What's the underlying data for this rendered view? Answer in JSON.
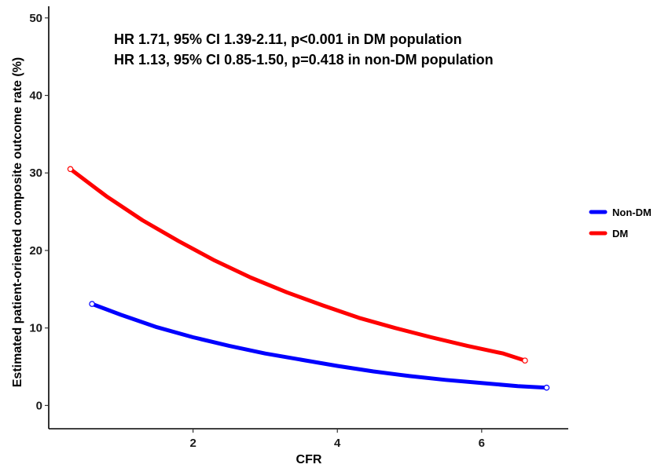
{
  "chart_data": {
    "type": "line",
    "xlabel": "CFR",
    "ylabel": "Estimated patient-oriented composite outcome rate (%)",
    "xlim": [
      0.0,
      7.2
    ],
    "ylim": [
      -3.0,
      51.5
    ],
    "x_ticks": [
      2,
      4,
      6
    ],
    "y_ticks": [
      0,
      10,
      20,
      30,
      40,
      50
    ],
    "annotations": [
      "HR 1.71, 95% CI 1.39-2.11, p<0.001 in DM population",
      "HR 1.13, 95% CI 0.85-1.50, p=0.418 in non-DM population"
    ],
    "legend_position": "right",
    "grid": false,
    "series": [
      {
        "name": "Non-DM",
        "color": "#0000ff",
        "x": [
          0.6,
          1.0,
          1.5,
          2.0,
          2.5,
          3.0,
          3.5,
          4.0,
          4.5,
          5.0,
          5.5,
          6.0,
          6.5,
          6.9
        ],
        "y": [
          13.1,
          11.7,
          10.1,
          8.8,
          7.7,
          6.7,
          5.9,
          5.1,
          4.4,
          3.8,
          3.3,
          2.9,
          2.5,
          2.3
        ]
      },
      {
        "name": "DM",
        "color": "#ff0000",
        "x": [
          0.3,
          0.8,
          1.3,
          1.8,
          2.3,
          2.8,
          3.3,
          3.8,
          4.3,
          4.8,
          5.3,
          5.8,
          6.3,
          6.6
        ],
        "y": [
          30.5,
          27.0,
          23.9,
          21.2,
          18.7,
          16.5,
          14.6,
          12.9,
          11.3,
          10.0,
          8.8,
          7.7,
          6.7,
          5.8
        ]
      }
    ]
  }
}
